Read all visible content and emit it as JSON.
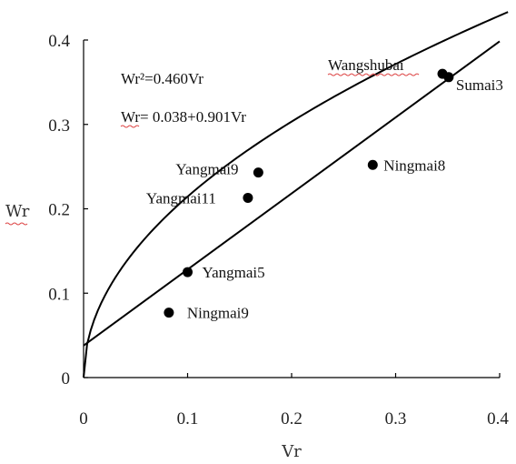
{
  "chart_data": {
    "type": "scatter",
    "title": "",
    "xlabel": "Vr",
    "ylabel": "Wr",
    "xlim": [
      0,
      0.4
    ],
    "ylim": [
      0,
      0.4
    ],
    "xticks": [
      "0",
      "0.1",
      "0.2",
      "0.3",
      "0.4"
    ],
    "yticks": [
      "0",
      "0.1",
      "0.2",
      "0.3",
      "0.4"
    ],
    "grid": false,
    "points": [
      {
        "label": "Wangshubai",
        "x": 0.345,
        "y": 0.36
      },
      {
        "label": "Sumai3",
        "x": 0.351,
        "y": 0.356
      },
      {
        "label": "Ningmai8",
        "x": 0.278,
        "y": 0.252
      },
      {
        "label": "Yangmai9",
        "x": 0.168,
        "y": 0.243
      },
      {
        "label": "Yangmai11",
        "x": 0.158,
        "y": 0.213
      },
      {
        "label": "Yangmai5",
        "x": 0.1,
        "y": 0.125
      },
      {
        "label": "Ningmai9",
        "x": 0.082,
        "y": 0.077
      }
    ],
    "curves": [
      {
        "equation": "Wr²=0.460Vr",
        "type": "power",
        "coef": 0.46
      },
      {
        "equation": "Wr= 0.038+0.901Vr",
        "type": "linear",
        "intercept": 0.038,
        "slope": 0.901
      }
    ]
  }
}
